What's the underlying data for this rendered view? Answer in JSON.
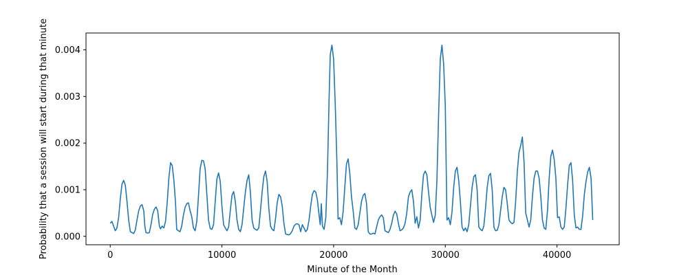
{
  "chart_data": {
    "type": "line",
    "title": "",
    "xlabel": "Minute of the Month",
    "ylabel": "Probability that a session will start during that minute",
    "xlim": [
      -2170,
      45570
    ],
    "ylim": [
      -0.00018,
      0.00436
    ],
    "xticks": [
      0,
      10000,
      20000,
      30000,
      40000
    ],
    "xtick_labels": [
      "0",
      "10000",
      "20000",
      "30000",
      "40000"
    ],
    "yticks": [
      0.0,
      0.001,
      0.002,
      0.003,
      0.004
    ],
    "ytick_labels": [
      "0.000",
      "0.001",
      "0.002",
      "0.003",
      "0.004"
    ],
    "grid": false,
    "line_color": "#1f77b4",
    "series": [
      {
        "x": [
          0,
          150,
          300,
          450,
          600,
          750,
          900,
          1050,
          1200,
          1350,
          1500,
          1650,
          1800,
          1950,
          2100,
          2250,
          2400,
          2550,
          2700,
          2850,
          3000,
          3100,
          3200,
          3350,
          3500,
          3650,
          3800,
          3950,
          4100,
          4250,
          4400,
          4500,
          4650,
          4800,
          4950,
          5100,
          5250,
          5400,
          5550,
          5700,
          5850,
          5950,
          6100,
          6250,
          6400,
          6550,
          6700,
          6850,
          7000,
          7150,
          7300,
          7450,
          7600,
          7750,
          7900,
          8050,
          8200,
          8350,
          8500,
          8650,
          8800,
          8950,
          9100,
          9250,
          9400,
          9550,
          9700,
          9850,
          10000,
          10150,
          10300,
          10450,
          10600,
          10750,
          10900,
          11050,
          11200,
          11350,
          11500,
          11650,
          11800,
          11950,
          12100,
          12250,
          12400,
          12550,
          12700,
          12850,
          13000,
          13150,
          13300,
          13450,
          13600,
          13750,
          13900,
          14050,
          14200,
          14350,
          14500,
          14650,
          14800,
          14950,
          15100,
          15250,
          15400,
          15550,
          15700,
          15850,
          16000,
          16150,
          16300,
          16450,
          16600,
          16750,
          16900,
          17050,
          17200,
          17350,
          17500,
          17650,
          17800,
          17950,
          18100,
          18250,
          18400,
          18550,
          18700,
          18800,
          18900,
          19000,
          19150,
          19300,
          19450,
          19600,
          19700,
          19850,
          20000,
          20150,
          20300,
          20400,
          20550,
          20700,
          20850,
          21000,
          21150,
          21300,
          21450,
          21600,
          21750,
          21900,
          22050,
          22200,
          22350,
          22500,
          22650,
          22800,
          22950,
          23100,
          23250,
          23400,
          23550,
          23700,
          23850,
          24000,
          24150,
          24300,
          24450,
          24600,
          24750,
          24900,
          25050,
          25200,
          25350,
          25500,
          25650,
          25800,
          25950,
          26100,
          26250,
          26400,
          26550,
          26700,
          26850,
          27000,
          27150,
          27300,
          27450,
          27600,
          27750,
          27900,
          28050,
          28200,
          28350,
          28500,
          28650,
          28800,
          28950,
          29100,
          29250,
          29400,
          29550,
          29700,
          29850,
          30000,
          30150,
          30300,
          30450,
          30600,
          30750,
          30900,
          31050,
          31200,
          31350,
          31500,
          31650,
          31800,
          31950,
          32100,
          32250,
          32400,
          32550,
          32700,
          32850,
          33000,
          33150,
          33300,
          33450,
          33600,
          33750,
          33900,
          34050,
          34200,
          34350,
          34500,
          34650,
          34800,
          34950,
          35100,
          35250,
          35400,
          35550,
          35700,
          35850,
          36000,
          36150,
          36300,
          36450,
          36600,
          36750,
          36900,
          37050,
          37200,
          37350,
          37500,
          37650,
          37800,
          37950,
          38100,
          38250,
          38400,
          38550,
          38700,
          38850,
          39000,
          39150,
          39300,
          39450,
          39600,
          39750,
          39900,
          40050,
          40200,
          40350,
          40500,
          40650,
          40800,
          40950,
          41100,
          41250,
          41400,
          41550,
          41700,
          41850,
          42000,
          42150,
          42300,
          42450,
          42600,
          42750,
          42900,
          43050,
          43200
        ],
        "y": [
          0.00028,
          0.00032,
          0.00022,
          0.00012,
          0.00018,
          0.0004,
          0.0008,
          0.00112,
          0.0012,
          0.0011,
          0.00075,
          0.00035,
          0.0001,
          8e-05,
          6e-05,
          0.00014,
          0.00036,
          0.00055,
          0.00065,
          0.00068,
          0.00055,
          0.00022,
          8e-05,
          7e-05,
          8e-05,
          0.00025,
          0.00047,
          0.00058,
          0.00063,
          0.00055,
          0.00022,
          0.00016,
          0.00022,
          0.00018,
          0.00032,
          0.00072,
          0.00125,
          0.00158,
          0.00152,
          0.0012,
          0.0007,
          0.00015,
          0.00012,
          0.0001,
          0.00022,
          0.00045,
          0.00062,
          0.0007,
          0.00072,
          0.00055,
          0.00042,
          0.00018,
          0.00012,
          0.00032,
          0.00086,
          0.00145,
          0.00163,
          0.00162,
          0.00145,
          0.0009,
          0.00035,
          0.00017,
          0.00015,
          0.00025,
          0.00075,
          0.00123,
          0.00136,
          0.00118,
          0.00065,
          0.00025,
          0.00018,
          0.00012,
          0.0002,
          0.00055,
          0.00088,
          0.00096,
          0.00075,
          0.00035,
          0.00015,
          0.0001,
          0.00025,
          0.0006,
          0.00095,
          0.0012,
          0.00132,
          0.00095,
          0.00035,
          0.00018,
          0.00015,
          0.00013,
          0.00018,
          0.00055,
          0.00095,
          0.00128,
          0.0014,
          0.00118,
          0.0006,
          0.00022,
          0.00015,
          0.00012,
          0.00038,
          0.00072,
          0.0009,
          0.00085,
          0.00065,
          0.00028,
          5e-05,
          4e-05,
          3e-05,
          6e-05,
          0.00012,
          0.00022,
          0.00026,
          0.00027,
          0.00025,
          0.0001,
          0.00025,
          0.00018,
          0.0001,
          0.00015,
          0.00035,
          0.00065,
          0.0009,
          0.00098,
          0.00095,
          0.00078,
          0.00045,
          0.00025,
          0.0007,
          0.00022,
          0.00015,
          0.0004,
          0.0014,
          0.003,
          0.0039,
          0.0041,
          0.0038,
          0.0028,
          0.00155,
          0.00037,
          0.0004,
          0.00025,
          0.00052,
          0.00105,
          0.00155,
          0.00166,
          0.00135,
          0.00085,
          0.00055,
          0.00018,
          0.00015,
          0.00025,
          0.0005,
          0.00075,
          0.00088,
          0.00092,
          0.0007,
          0.0001,
          5e-05,
          5e-05,
          7e-05,
          5e-05,
          0.0002,
          0.00035,
          0.00042,
          0.00046,
          0.0004,
          0.00012,
          0.0001,
          8e-05,
          0.00015,
          0.00028,
          0.00045,
          0.00054,
          0.00048,
          0.00028,
          0.00012,
          0.00014,
          0.00018,
          0.00028,
          0.0005,
          0.00085,
          0.00095,
          0.001,
          0.00075,
          0.00028,
          0.00042,
          0.00018,
          0.00035,
          0.0009,
          0.00132,
          0.0014,
          0.00132,
          0.00095,
          0.00062,
          0.00045,
          0.0003,
          0.00045,
          0.0012,
          0.0026,
          0.0038,
          0.0041,
          0.0037,
          0.0028,
          0.00035,
          0.0004,
          0.00025,
          0.00052,
          0.00105,
          0.0014,
          0.00148,
          0.0012,
          0.00075,
          0.0002,
          0.00012,
          0.00018,
          0.0001,
          0.00025,
          0.00065,
          0.00105,
          0.00128,
          0.00132,
          0.001,
          0.0002,
          0.00015,
          0.00012,
          0.00022,
          0.0006,
          0.00105,
          0.0013,
          0.00135,
          0.001,
          0.0002,
          0.00012,
          0.00013,
          0.00025,
          0.00055,
          0.00085,
          0.00105,
          0.001,
          0.0007,
          0.00035,
          0.0003,
          0.00027,
          0.0003,
          0.00075,
          0.0014,
          0.0018,
          0.00195,
          0.00213,
          0.0016,
          0.0005,
          0.00035,
          0.0002,
          0.00035,
          0.00085,
          0.00125,
          0.0014,
          0.0014,
          0.00125,
          0.00085,
          0.00035,
          0.00018,
          0.00015,
          0.00055,
          0.00125,
          0.00172,
          0.00185,
          0.00165,
          0.00125,
          0.0004,
          0.00042,
          0.0002,
          0.00015,
          0.0002,
          0.0006,
          0.0011,
          0.00152,
          0.00158,
          0.0012,
          0.00045,
          0.00018,
          0.0002,
          0.00015,
          0.00015,
          0.00045,
          0.0009,
          0.00118,
          0.00138,
          0.00148,
          0.00125,
          0.00035
        ]
      }
    ]
  }
}
